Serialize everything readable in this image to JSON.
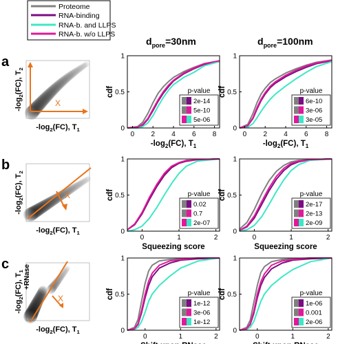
{
  "legend": {
    "entries": [
      {
        "label": "Proteome",
        "color": "#808080"
      },
      {
        "label": "RNA-binding",
        "color": "#7a0e82"
      },
      {
        "label": "RNA-b. and LLPS",
        "color": "#3de8c4"
      },
      {
        "label": "RNA-b. w/o LLPS",
        "color": "#e0199a"
      }
    ]
  },
  "column_headers": [
    {
      "main": "d",
      "sub": "pore",
      "tail": "=30nm"
    },
    {
      "main": "d",
      "sub": "pore",
      "tail": "=100nm"
    }
  ],
  "rows": [
    {
      "letter": "a",
      "schematic": {
        "x_label": "-log",
        "x_sub": "2",
        "x_mid": "(FC), T",
        "x_sub2": "1",
        "y_label": "-log",
        "y_sub": "2",
        "y_mid": "(FC), T",
        "y_sub2": "2",
        "y_prefix": "",
        "arrow_label": "X"
      },
      "panels": [
        {
          "ylabel": "cdf",
          "xlabel_main": "-log",
          "xlabel_sub": "2",
          "xlabel_mid": "(FC), T",
          "xlabel_sub2": "1",
          "pvalue_title": "p-value",
          "pvalues": [
            "2e-14",
            "5e-10",
            "5e-06"
          ]
        },
        {
          "ylabel": "cdf",
          "xlabel_main": "-log",
          "xlabel_sub": "2",
          "xlabel_mid": "(FC), T",
          "xlabel_sub2": "1",
          "pvalue_title": "p-value",
          "pvalues": [
            "6e-10",
            "3e-06",
            "3e-05"
          ]
        }
      ]
    },
    {
      "letter": "b",
      "schematic": {
        "x_label": "-log",
        "x_sub": "2",
        "x_mid": "(FC), T",
        "x_sub2": "1",
        "y_label": "-log",
        "y_sub": "2",
        "y_mid": "(FC), T",
        "y_sub2": "2",
        "y_prefix": "",
        "arrow_label": "X"
      },
      "panels": [
        {
          "ylabel": "cdf",
          "xlabel_main": "Squeezing score",
          "pvalue_title": "p-value",
          "pvalues": [
            "0.02",
            "0.7",
            "2e-07"
          ]
        },
        {
          "ylabel": "cdf",
          "xlabel_main": "Squeezing score",
          "pvalue_title": "p-value",
          "pvalues": [
            "2e-17",
            "2e-13",
            "2e-09"
          ]
        }
      ]
    },
    {
      "letter": "c",
      "schematic": {
        "x_label": "-log",
        "x_sub": "2",
        "x_mid": "(FC), T",
        "x_sub2": "1",
        "y_label": "-log",
        "y_sub": "2",
        "y_mid": "(FC), T",
        "y_sub2": "1",
        "y_prefix": "+RNase",
        "arrow_label": "X"
      },
      "panels": [
        {
          "ylabel": "cdf",
          "xlabel_main": "Shift upon RNase",
          "pvalue_title": "p-value",
          "pvalues": [
            "1e-12",
            "3e-06",
            "1e-12"
          ]
        },
        {
          "ylabel": "cdf",
          "xlabel_main": "Shift upon RNase",
          "pvalue_title": "p-value",
          "pvalues": [
            "1e-06",
            "0.001",
            "2e-06"
          ]
        }
      ]
    }
  ],
  "chart_data": [
    {
      "type": "line",
      "row": "a",
      "column": "dpore=30nm",
      "xlim": [
        -0.5,
        8.5
      ],
      "ylim": [
        0,
        1
      ],
      "xticks": [
        0,
        2,
        4,
        6,
        8
      ],
      "yticks": [
        0,
        0.5,
        1
      ],
      "series": [
        {
          "name": "Proteome",
          "x": [
            -0.5,
            0.5,
            1.0,
            1.5,
            2.0,
            2.5,
            3.0,
            3.5,
            4.0,
            5.0,
            6.0,
            7.0,
            8.5
          ],
          "y": [
            0,
            0.02,
            0.08,
            0.2,
            0.35,
            0.48,
            0.57,
            0.64,
            0.7,
            0.78,
            0.84,
            0.89,
            0.93
          ]
        },
        {
          "name": "RNA-binding",
          "x": [
            -0.5,
            0.5,
            1.0,
            1.5,
            2.0,
            2.5,
            3.0,
            3.5,
            4.0,
            5.0,
            6.0,
            7.0,
            8.5
          ],
          "y": [
            0,
            0.01,
            0.04,
            0.12,
            0.24,
            0.37,
            0.48,
            0.57,
            0.65,
            0.75,
            0.82,
            0.88,
            0.93
          ]
        },
        {
          "name": "RNA-b. and LLPS",
          "x": [
            -0.5,
            0.5,
            1.0,
            1.5,
            2.0,
            2.5,
            3.0,
            3.5,
            4.0,
            5.0,
            6.0,
            7.0,
            8.5
          ],
          "y": [
            0,
            0.0,
            0.02,
            0.07,
            0.17,
            0.3,
            0.42,
            0.52,
            0.6,
            0.7,
            0.77,
            0.86,
            0.92
          ]
        },
        {
          "name": "RNA-b. w/o LLPS",
          "x": [
            -0.5,
            0.5,
            1.0,
            1.5,
            2.0,
            2.5,
            3.0,
            3.5,
            4.0,
            5.0,
            6.0,
            7.0,
            8.5
          ],
          "y": [
            0,
            0.01,
            0.05,
            0.13,
            0.26,
            0.39,
            0.5,
            0.59,
            0.66,
            0.76,
            0.83,
            0.89,
            0.93
          ]
        }
      ]
    },
    {
      "type": "line",
      "row": "a",
      "column": "dpore=100nm",
      "xlim": [
        -0.5,
        8.5
      ],
      "ylim": [
        0,
        1
      ],
      "xticks": [
        0,
        2,
        4,
        6,
        8
      ],
      "yticks": [
        0,
        0.5,
        1
      ],
      "series": [
        {
          "name": "Proteome",
          "x": [
            -0.5,
            0.3,
            0.8,
            1.2,
            1.6,
            2.0,
            2.5,
            3.0,
            4.0,
            5.0,
            6.0,
            7.0,
            8.5
          ],
          "y": [
            0,
            0.05,
            0.2,
            0.35,
            0.47,
            0.55,
            0.63,
            0.68,
            0.76,
            0.82,
            0.87,
            0.91,
            0.94
          ]
        },
        {
          "name": "RNA-binding",
          "x": [
            -0.5,
            0.3,
            0.8,
            1.2,
            1.6,
            2.0,
            2.5,
            3.0,
            4.0,
            5.0,
            6.0,
            7.0,
            8.5
          ],
          "y": [
            0,
            0.03,
            0.13,
            0.26,
            0.38,
            0.47,
            0.56,
            0.62,
            0.71,
            0.78,
            0.84,
            0.89,
            0.93
          ]
        },
        {
          "name": "RNA-b. and LLPS",
          "x": [
            -0.5,
            0.3,
            0.8,
            1.2,
            1.6,
            2.0,
            2.5,
            3.0,
            4.0,
            5.0,
            6.0,
            7.0,
            8.5
          ],
          "y": [
            0,
            0.01,
            0.06,
            0.14,
            0.23,
            0.31,
            0.4,
            0.47,
            0.58,
            0.68,
            0.77,
            0.85,
            0.92
          ]
        },
        {
          "name": "RNA-b. w/o LLPS",
          "x": [
            -0.5,
            0.3,
            0.8,
            1.2,
            1.6,
            2.0,
            2.5,
            3.0,
            4.0,
            5.0,
            6.0,
            7.0,
            8.5
          ],
          "y": [
            0,
            0.03,
            0.14,
            0.28,
            0.4,
            0.49,
            0.58,
            0.64,
            0.73,
            0.8,
            0.86,
            0.9,
            0.94
          ]
        }
      ]
    },
    {
      "type": "line",
      "row": "b",
      "column": "dpore=30nm",
      "xlim": [
        -0.4,
        2.1
      ],
      "ylim": [
        0,
        1
      ],
      "xticks": [
        0,
        1,
        2
      ],
      "yticks": [
        0,
        0.5,
        1
      ],
      "series": [
        {
          "name": "Proteome",
          "x": [
            -0.4,
            -0.2,
            0,
            0.2,
            0.4,
            0.6,
            0.8,
            1.0,
            1.2,
            1.5,
            2.1
          ],
          "y": [
            0.02,
            0.1,
            0.25,
            0.45,
            0.63,
            0.78,
            0.88,
            0.94,
            0.97,
            0.99,
            1.0
          ]
        },
        {
          "name": "RNA-binding",
          "x": [
            -0.4,
            -0.2,
            0,
            0.2,
            0.4,
            0.6,
            0.8,
            1.0,
            1.2,
            1.5,
            2.1
          ],
          "y": [
            0.02,
            0.09,
            0.24,
            0.44,
            0.62,
            0.77,
            0.88,
            0.94,
            0.97,
            0.99,
            1.0
          ]
        },
        {
          "name": "RNA-b. and LLPS",
          "x": [
            -0.4,
            -0.2,
            0,
            0.2,
            0.4,
            0.6,
            0.8,
            1.0,
            1.2,
            1.5,
            2.1
          ],
          "y": [
            0.0,
            0.02,
            0.07,
            0.18,
            0.33,
            0.5,
            0.66,
            0.8,
            0.9,
            0.97,
            1.0
          ]
        },
        {
          "name": "RNA-b. w/o LLPS",
          "x": [
            -0.4,
            -0.2,
            0,
            0.2,
            0.4,
            0.6,
            0.8,
            1.0,
            1.2,
            1.5,
            2.1
          ],
          "y": [
            0.02,
            0.1,
            0.26,
            0.47,
            0.65,
            0.8,
            0.9,
            0.95,
            0.98,
            0.99,
            1.0
          ]
        }
      ]
    },
    {
      "type": "line",
      "row": "b",
      "column": "dpore=100nm",
      "xlim": [
        -0.4,
        2.1
      ],
      "ylim": [
        0,
        1
      ],
      "xticks": [
        0,
        1,
        2
      ],
      "yticks": [
        0,
        0.5,
        1
      ],
      "series": [
        {
          "name": "Proteome",
          "x": [
            -0.4,
            -0.2,
            0,
            0.2,
            0.4,
            0.6,
            0.8,
            1.0,
            1.2,
            1.5,
            2.1
          ],
          "y": [
            0.03,
            0.12,
            0.3,
            0.52,
            0.7,
            0.83,
            0.91,
            0.96,
            0.98,
            0.99,
            1.0
          ]
        },
        {
          "name": "RNA-binding",
          "x": [
            -0.4,
            -0.2,
            0,
            0.2,
            0.4,
            0.6,
            0.8,
            1.0,
            1.2,
            1.5,
            2.1
          ],
          "y": [
            0.01,
            0.06,
            0.18,
            0.37,
            0.56,
            0.72,
            0.84,
            0.92,
            0.96,
            0.99,
            1.0
          ]
        },
        {
          "name": "RNA-b. and LLPS",
          "x": [
            -0.4,
            -0.2,
            0,
            0.2,
            0.4,
            0.6,
            0.8,
            1.0,
            1.2,
            1.5,
            2.1
          ],
          "y": [
            0.0,
            0.02,
            0.08,
            0.2,
            0.37,
            0.55,
            0.71,
            0.84,
            0.92,
            0.98,
            1.0
          ]
        },
        {
          "name": "RNA-b. w/o LLPS",
          "x": [
            -0.4,
            -0.2,
            0,
            0.2,
            0.4,
            0.6,
            0.8,
            1.0,
            1.2,
            1.5,
            2.1
          ],
          "y": [
            0.01,
            0.07,
            0.21,
            0.41,
            0.6,
            0.76,
            0.87,
            0.94,
            0.97,
            0.99,
            1.0
          ]
        }
      ]
    },
    {
      "type": "line",
      "row": "c",
      "column": "dpore=30nm",
      "xlim": [
        -0.5,
        2.1
      ],
      "ylim": [
        0,
        1
      ],
      "xticks": [
        0,
        1,
        2
      ],
      "yticks": [
        0,
        0.5,
        1
      ],
      "series": [
        {
          "name": "Proteome",
          "x": [
            -0.5,
            -0.3,
            -0.2,
            -0.1,
            0,
            0.1,
            0.2,
            0.4,
            0.7,
            1.0,
            1.5,
            2.1
          ],
          "y": [
            0.0,
            0.04,
            0.15,
            0.4,
            0.65,
            0.82,
            0.9,
            0.96,
            0.98,
            0.99,
            1.0,
            1.0
          ]
        },
        {
          "name": "RNA-binding",
          "x": [
            -0.5,
            -0.3,
            -0.2,
            -0.1,
            0,
            0.1,
            0.2,
            0.4,
            0.7,
            1.0,
            1.5,
            2.1
          ],
          "y": [
            0.0,
            0.02,
            0.08,
            0.24,
            0.45,
            0.62,
            0.74,
            0.86,
            0.93,
            0.97,
            0.99,
            1.0
          ]
        },
        {
          "name": "RNA-b. and LLPS",
          "x": [
            -0.5,
            -0.3,
            -0.2,
            -0.1,
            0,
            0.1,
            0.2,
            0.4,
            0.7,
            1.0,
            1.5,
            2.1
          ],
          "y": [
            0.0,
            0.01,
            0.04,
            0.12,
            0.25,
            0.4,
            0.5,
            0.62,
            0.75,
            0.86,
            0.96,
            1.0
          ]
        },
        {
          "name": "RNA-b. w/o LLPS",
          "x": [
            -0.5,
            -0.3,
            -0.2,
            -0.1,
            0,
            0.1,
            0.2,
            0.4,
            0.7,
            1.0,
            1.5,
            2.1
          ],
          "y": [
            0.0,
            0.02,
            0.09,
            0.27,
            0.5,
            0.68,
            0.79,
            0.9,
            0.96,
            0.98,
            1.0,
            1.0
          ]
        }
      ]
    },
    {
      "type": "line",
      "row": "c",
      "column": "dpore=100nm",
      "xlim": [
        -0.5,
        2.1
      ],
      "ylim": [
        0,
        1
      ],
      "xticks": [
        0,
        1,
        2
      ],
      "yticks": [
        0,
        0.5,
        1
      ],
      "series": [
        {
          "name": "Proteome",
          "x": [
            -0.5,
            -0.3,
            -0.2,
            -0.1,
            0,
            0.1,
            0.2,
            0.4,
            0.7,
            1.0,
            1.5,
            2.1
          ],
          "y": [
            0.0,
            0.04,
            0.14,
            0.38,
            0.62,
            0.8,
            0.88,
            0.95,
            0.98,
            0.99,
            1.0,
            1.0
          ]
        },
        {
          "name": "RNA-binding",
          "x": [
            -0.5,
            -0.3,
            -0.2,
            -0.1,
            0,
            0.1,
            0.2,
            0.4,
            0.7,
            1.0,
            1.5,
            2.1
          ],
          "y": [
            0.0,
            0.02,
            0.08,
            0.23,
            0.45,
            0.62,
            0.73,
            0.85,
            0.93,
            0.97,
            0.99,
            1.0
          ]
        },
        {
          "name": "RNA-b. and LLPS",
          "x": [
            -0.5,
            -0.3,
            -0.2,
            -0.1,
            0,
            0.1,
            0.2,
            0.4,
            0.7,
            1.0,
            1.5,
            2.1
          ],
          "y": [
            0.0,
            0.01,
            0.04,
            0.12,
            0.26,
            0.4,
            0.5,
            0.62,
            0.74,
            0.84,
            0.95,
            1.0
          ]
        },
        {
          "name": "RNA-b. w/o LLPS",
          "x": [
            -0.5,
            -0.3,
            -0.2,
            -0.1,
            0,
            0.1,
            0.2,
            0.4,
            0.7,
            1.0,
            1.5,
            2.1
          ],
          "y": [
            0.0,
            0.02,
            0.09,
            0.26,
            0.5,
            0.67,
            0.78,
            0.9,
            0.96,
            0.98,
            1.0,
            1.0
          ]
        }
      ]
    }
  ]
}
